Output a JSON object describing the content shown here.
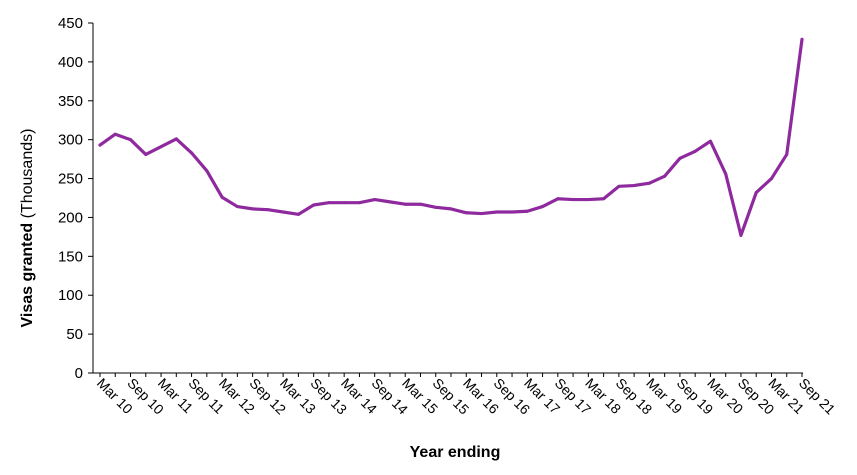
{
  "chart_data": {
    "type": "line",
    "title": "",
    "xlabel": "Year ending",
    "ylabel_bold": "Visas granted",
    "ylabel_unit": "(Thousands)",
    "ylim": [
      0,
      450
    ],
    "yticks": [
      0,
      50,
      100,
      150,
      200,
      250,
      300,
      350,
      400,
      450
    ],
    "x_labels_shown": [
      "Mar 10",
      "Sep 10",
      "Mar 11",
      "Sep 11",
      "Mar 12",
      "Sep 12",
      "Mar 13",
      "Sep 13",
      "Mar 14",
      "Sep 14",
      "Mar 15",
      "Sep 15",
      "Mar 16",
      "Sep 16",
      "Mar 17",
      "Sep 17",
      "Mar 18",
      "Sep 18",
      "Mar 19",
      "Sep 19",
      "Mar 20",
      "Sep 20",
      "Mar 21",
      "Sep 21"
    ],
    "grid": false,
    "line_color": "#8E2A9E",
    "series": [
      {
        "x": [
          "Mar 10",
          "Jun 10",
          "Sep 10",
          "Dec 10",
          "Mar 11",
          "Jun 11",
          "Sep 11",
          "Dec 11",
          "Mar 12",
          "Jun 12",
          "Sep 12",
          "Dec 12",
          "Mar 13",
          "Jun 13",
          "Sep 13",
          "Dec 13",
          "Mar 14",
          "Jun 14",
          "Sep 14",
          "Dec 14",
          "Mar 15",
          "Jun 15",
          "Sep 15",
          "Dec 15",
          "Mar 16",
          "Jun 16",
          "Sep 16",
          "Dec 16",
          "Mar 17",
          "Jun 17",
          "Sep 17",
          "Dec 17",
          "Mar 18",
          "Jun 18",
          "Sep 18",
          "Dec 18",
          "Mar 19",
          "Jun 19",
          "Sep 19",
          "Dec 19",
          "Mar 20",
          "Jun 20",
          "Sep 20",
          "Dec 20",
          "Mar 21",
          "Jun 21",
          "Sep 21"
        ],
        "values": [
          293,
          307,
          300,
          281,
          291,
          301,
          283,
          260,
          226,
          214,
          211,
          210,
          207,
          204,
          216,
          219,
          219,
          219,
          223,
          220,
          217,
          217,
          213,
          211,
          206,
          205,
          207,
          207,
          208,
          214,
          224,
          223,
          223,
          224,
          240,
          241,
          244,
          253,
          276,
          285,
          298,
          256,
          177,
          232,
          250,
          281,
          429
        ]
      }
    ]
  }
}
